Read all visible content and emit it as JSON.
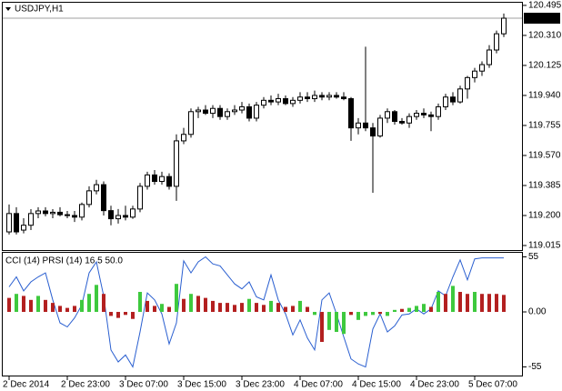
{
  "chart_data": [
    {
      "type": "candlestick",
      "title": "USDJPY,H1",
      "categories": [
        "2 Dec 2014",
        null,
        null,
        null,
        null,
        null,
        null,
        null,
        "2 Dec 23:00",
        null,
        null,
        null,
        null,
        null,
        null,
        null,
        "3 Dec 07:00",
        null,
        null,
        null,
        null,
        null,
        null,
        null,
        "3 Dec 15:00",
        null,
        null,
        null,
        null,
        null,
        null,
        null,
        "3 Dec 23:00",
        null,
        null,
        null,
        null,
        null,
        null,
        null,
        "4 Dec 07:00",
        null,
        null,
        null,
        null,
        null,
        null,
        null,
        "4 Dec 15:00",
        null,
        null,
        null,
        null,
        null,
        null,
        null,
        "4 Dec 23:00",
        null,
        null,
        null,
        null,
        null,
        null,
        null,
        "5 Dec 07:00",
        null,
        null,
        null,
        null
      ],
      "open": [
        119.099,
        119.212,
        119.11,
        119.14,
        119.212,
        119.228,
        119.212,
        119.22,
        119.205,
        119.2,
        119.19,
        119.268,
        119.352,
        119.39,
        119.23,
        119.18,
        119.2,
        119.19,
        119.24,
        119.38,
        119.45,
        119.41,
        119.44,
        119.38,
        119.66,
        119.7,
        119.84,
        119.85,
        119.83,
        119.86,
        119.81,
        119.84,
        119.85,
        119.87,
        119.8,
        119.88,
        119.91,
        119.9,
        119.92,
        119.89,
        119.91,
        119.93,
        119.92,
        119.94,
        119.93,
        119.94,
        119.93,
        119.92,
        119.74,
        119.77,
        119.74,
        119.69,
        119.8,
        119.84,
        119.78,
        119.77,
        119.81,
        119.83,
        119.82,
        119.81,
        119.87,
        119.93,
        119.9,
        119.98,
        120.05,
        120.09,
        120.13,
        120.22,
        120.32
      ],
      "high": [
        119.268,
        119.251,
        119.183,
        119.239,
        119.251,
        119.251,
        119.239,
        119.251,
        119.228,
        119.228,
        119.28,
        119.38,
        119.42,
        119.41,
        119.26,
        119.24,
        119.26,
        119.26,
        119.4,
        119.47,
        119.48,
        119.47,
        119.46,
        119.7,
        119.74,
        119.86,
        119.87,
        119.88,
        119.88,
        119.88,
        119.86,
        119.88,
        119.9,
        119.89,
        119.9,
        119.93,
        119.94,
        119.95,
        119.94,
        119.93,
        119.96,
        119.96,
        119.97,
        119.96,
        119.96,
        119.96,
        119.96,
        119.93,
        119.8,
        120.24,
        119.77,
        119.82,
        119.86,
        119.85,
        119.8,
        119.83,
        119.85,
        119.86,
        119.84,
        119.89,
        119.95,
        119.96,
        120.0,
        120.06,
        120.11,
        120.15,
        120.25,
        120.34,
        120.445
      ],
      "low": [
        119.083,
        119.083,
        119.09,
        119.11,
        119.183,
        119.195,
        119.183,
        119.195,
        119.183,
        119.16,
        119.17,
        119.25,
        119.33,
        119.2,
        119.14,
        119.15,
        119.17,
        119.18,
        119.22,
        119.36,
        119.39,
        119.39,
        119.36,
        119.29,
        119.64,
        119.68,
        119.8,
        119.82,
        119.8,
        119.79,
        119.79,
        119.82,
        119.83,
        119.78,
        119.78,
        119.86,
        119.88,
        119.88,
        119.88,
        119.87,
        119.89,
        119.9,
        119.9,
        119.91,
        119.91,
        119.92,
        119.91,
        119.66,
        119.7,
        119.72,
        119.34,
        119.68,
        119.77,
        119.76,
        119.76,
        119.74,
        119.79,
        119.8,
        119.72,
        119.79,
        119.85,
        119.88,
        119.89,
        119.92,
        120.02,
        120.06,
        120.11,
        120.2,
        120.3
      ],
      "close": [
        119.212,
        119.099,
        119.14,
        119.212,
        119.228,
        119.212,
        119.22,
        119.205,
        119.2,
        119.19,
        119.268,
        119.352,
        119.39,
        119.23,
        119.18,
        119.2,
        119.19,
        119.24,
        119.38,
        119.45,
        119.41,
        119.44,
        119.38,
        119.66,
        119.7,
        119.84,
        119.85,
        119.83,
        119.86,
        119.81,
        119.84,
        119.85,
        119.87,
        119.8,
        119.88,
        119.91,
        119.9,
        119.92,
        119.89,
        119.91,
        119.93,
        119.92,
        119.94,
        119.93,
        119.94,
        119.93,
        119.92,
        119.74,
        119.77,
        119.74,
        119.69,
        119.8,
        119.84,
        119.78,
        119.77,
        119.81,
        119.83,
        119.82,
        119.81,
        119.87,
        119.93,
        119.9,
        119.98,
        120.05,
        120.09,
        120.13,
        120.22,
        120.32,
        120.416
      ],
      "up_color": "#ffffff",
      "down_color": "#000000",
      "current_price": 120.416,
      "ylim": [
        118.987,
        120.517
      ],
      "yticks": [
        120.495,
        {
          "value": 120.31,
          "label": "120.310"
        },
        120.125,
        {
          "value": 119.94,
          "label": "119.940"
        },
        119.755,
        {
          "value": 119.57,
          "label": "119.570"
        },
        119.385,
        {
          "value": 119.2,
          "label": "119.200"
        },
        119.015
      ]
    },
    {
      "type": "indicator",
      "title": "CCI (14) PRSI (14) 16.5 50.0",
      "series": [
        {
          "type": "line",
          "color": "#2a5fd0",
          "values": [
            25,
            35,
            21,
            30,
            35,
            39,
            12,
            -11,
            -15,
            -6,
            7,
            39,
            50,
            16,
            -38,
            -50,
            -43,
            -55,
            -20,
            19,
            12,
            -2,
            -32,
            -11,
            51,
            39,
            50,
            55,
            48,
            46,
            37,
            28,
            23,
            30,
            15,
            12,
            37,
            12,
            -2,
            -23,
            -8,
            -26,
            -38,
            12,
            19,
            -2,
            -25,
            -47,
            -52,
            -55,
            -17,
            -2,
            -20,
            -14,
            -3,
            -2,
            3,
            -2,
            3,
            21,
            16,
            35,
            52,
            32,
            53,
            54,
            54,
            54,
            54
          ]
        },
        {
          "type": "bar",
          "values": [
            14,
            18,
            16,
            12,
            16,
            12,
            9,
            6,
            4,
            6,
            12,
            18,
            27,
            18,
            -4,
            -6,
            -3,
            -7,
            20,
            11,
            6,
            8,
            5,
            28,
            13,
            18,
            16,
            14,
            11,
            9,
            9,
            7,
            9,
            13,
            9,
            7,
            11,
            9,
            5,
            6,
            11,
            5,
            -3,
            -30,
            -18,
            -20,
            -22,
            -3,
            -8,
            -4,
            -3,
            -2,
            -4,
            2,
            3,
            4,
            6,
            8,
            5,
            20,
            18,
            26,
            20,
            18,
            20,
            18,
            18,
            18,
            17
          ],
          "colors": [
            "#b32020",
            "#3ec93e",
            "#b32020",
            "#b32020",
            "#3ec93e",
            "#b32020",
            "#b32020",
            "#b32020",
            "#b32020",
            "#b32020",
            "#3ec93e",
            "#3ec93e",
            "#3ec93e",
            "#b32020",
            "#b32020",
            "#b32020",
            "#b32020",
            "#b32020",
            "#3ec93e",
            "#b32020",
            "#b32020",
            "#3ec93e",
            "#b32020",
            "#3ec93e",
            "#b32020",
            "#3ec93e",
            "#b32020",
            "#b32020",
            "#b32020",
            "#b32020",
            "#b32020",
            "#b32020",
            "#b32020",
            "#3ec93e",
            "#b32020",
            "#b32020",
            "#3ec93e",
            "#b32020",
            "#b32020",
            "#b32020",
            "#3ec93e",
            "#b32020",
            "#3ec93e",
            "#b32020",
            "#3ec93e",
            "#3ec93e",
            "#3ec93e",
            "#b32020",
            "#3ec93e",
            "#3ec93e",
            "#3ec93e",
            "#b32020",
            "#3ec93e",
            "#3ec93e",
            "#b32020",
            "#3ec93e",
            "#3ec93e",
            "#3ec93e",
            "#b32020",
            "#3ec93e",
            "#b32020",
            "#3ec93e",
            "#b32020",
            "#b32020",
            "#3ec93e",
            "#b32020",
            "#b32020",
            "#b32020",
            "#b32020"
          ]
        }
      ],
      "ylim": [
        -63.6,
        60
      ],
      "yticks": [
        55,
        {
          "value": 0,
          "label": "0.00"
        },
        -55
      ]
    }
  ]
}
